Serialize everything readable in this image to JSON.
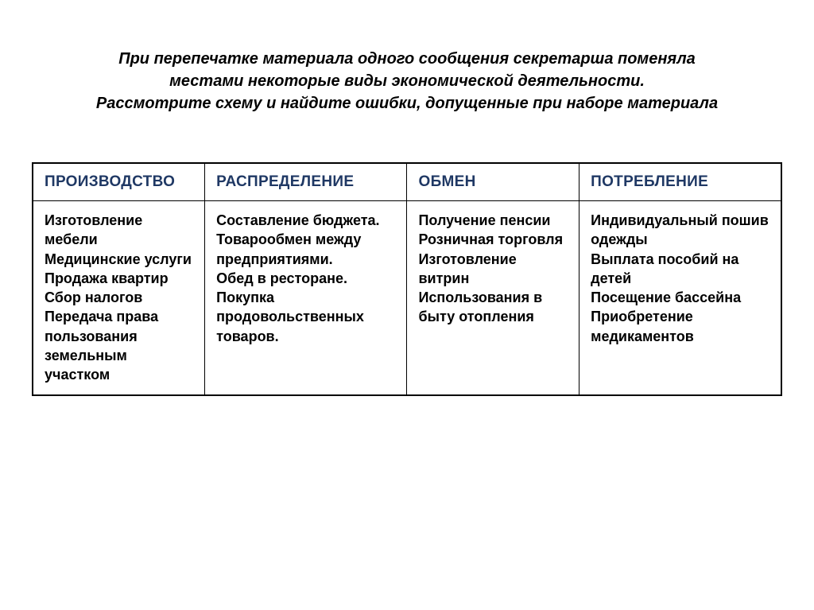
{
  "title": "При перепечатке материала одного сообщения секретарша поменяла\nместами некоторые виды  экономической деятельности.\nРассмотрите схему и найдите ошибки, допущенные при наборе материала",
  "table": {
    "headers": [
      "ПРОИЗВОДСТВО",
      "РАСПРЕДЕЛЕНИЕ",
      "ОБМЕН",
      "ПОТРЕБЛЕНИЕ"
    ],
    "cells": [
      "Изготовление мебели\nМедицинские услуги\nПродажа квартир\nСбор налогов\nПередача права пользования земельным участком",
      "Составление бюджета.\nТоварообмен между предприятиями.\nОбед в ресторане.\nПокупка продовольственных товаров.",
      "Получение пенсии\nРозничная торговля\nИзготовление витрин\nИспользования в быту отопления",
      "Индивидуальный пошив одежды\nВыплата пособий на детей\nПосещение бассейна\nПриобретение медикаментов"
    ]
  },
  "styles": {
    "header_color": "#1f3864",
    "border_color": "#000000",
    "text_color": "#000000",
    "background": "#ffffff",
    "title_fontsize": 20,
    "header_fontsize": 19,
    "cell_fontsize": 18
  }
}
